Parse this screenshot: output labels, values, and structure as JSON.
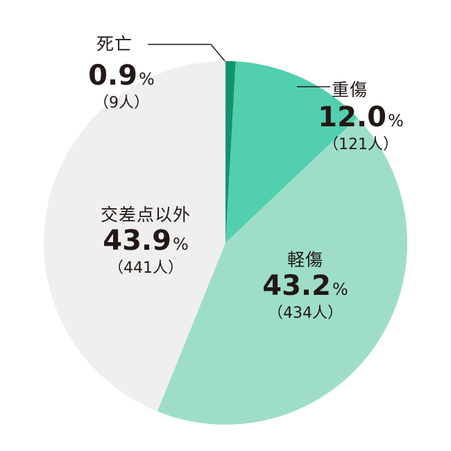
{
  "chart_data": {
    "type": "pie",
    "start_angle": "top",
    "direction": "clockwise",
    "slices": [
      {
        "label": "死亡",
        "percent": "0.9",
        "unit": "%",
        "count_text": "（9人）",
        "value": 9,
        "color": "#11956f"
      },
      {
        "label": "重傷",
        "percent": "12.0",
        "unit": "%",
        "count_text": "（121人）",
        "value": 121,
        "color": "#52cfae"
      },
      {
        "label": "軽傷",
        "percent": "43.2",
        "unit": "%",
        "count_text": "（434人）",
        "value": 434,
        "color": "#9edec9"
      },
      {
        "label": "交差点以外",
        "percent": "43.9",
        "unit": "%",
        "count_text": "（441人）",
        "value": 441,
        "color": "#efefef"
      }
    ]
  }
}
